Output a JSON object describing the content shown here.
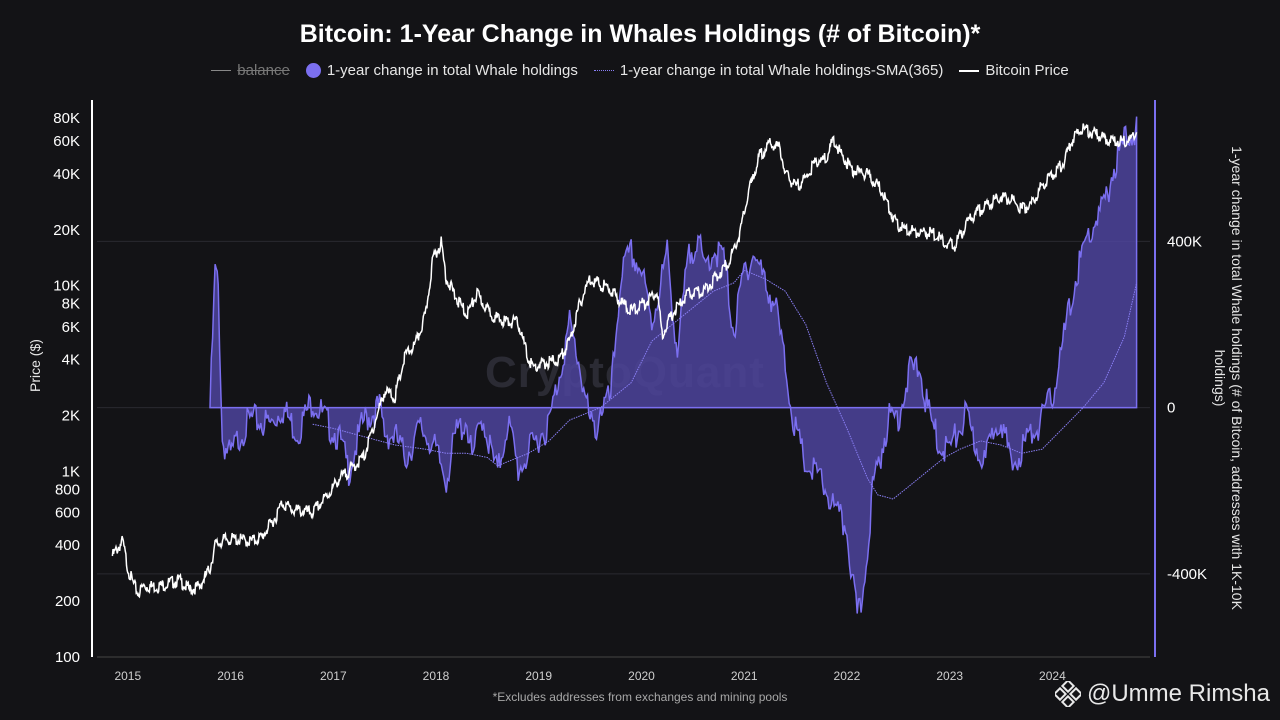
{
  "chart_data": {
    "type": "area",
    "title": "Bitcoin: 1-Year Change in Whales Holdings (# of Bitcoin)*",
    "legend": {
      "balance": "balance",
      "change": "1-year change in total Whale holdings",
      "sma": "1-year change in total Whale holdings-SMA(365)",
      "price": "Bitcoin Price"
    },
    "left_axis": {
      "label": "Price ($)",
      "scale": "log",
      "range": [
        100,
        100000
      ],
      "ticks": [
        {
          "v": 100,
          "label": "100"
        },
        {
          "v": 200,
          "label": "200"
        },
        {
          "v": 400,
          "label": "400"
        },
        {
          "v": 600,
          "label": "600"
        },
        {
          "v": 800,
          "label": "800"
        },
        {
          "v": 1000,
          "label": "1K"
        },
        {
          "v": 2000,
          "label": "2K"
        },
        {
          "v": 4000,
          "label": "4K"
        },
        {
          "v": 6000,
          "label": "6K"
        },
        {
          "v": 8000,
          "label": "8K"
        },
        {
          "v": 10000,
          "label": "10K"
        },
        {
          "v": 20000,
          "label": "20K"
        },
        {
          "v": 40000,
          "label": "40K"
        },
        {
          "v": 60000,
          "label": "60K"
        },
        {
          "v": 80000,
          "label": "80K"
        }
      ]
    },
    "right_axis": {
      "label": "1-year change in total Whale holdings (# of Bitcoin, addresses with 1K-10K holdings)",
      "range": [
        -600000,
        740000
      ],
      "ticks": [
        {
          "v": 400000,
          "label": "400K"
        },
        {
          "v": 0,
          "label": "0"
        },
        {
          "v": -400000,
          "label": "-400K"
        }
      ]
    },
    "x_axis": {
      "range": [
        2014.7,
        2024.95
      ],
      "ticks": [
        {
          "v": 2015,
          "label": "2015"
        },
        {
          "v": 2016,
          "label": "2016"
        },
        {
          "v": 2017,
          "label": "2017"
        },
        {
          "v": 2018,
          "label": "2018"
        },
        {
          "v": 2019,
          "label": "2019"
        },
        {
          "v": 2020,
          "label": "2020"
        },
        {
          "v": 2021,
          "label": "2021"
        },
        {
          "v": 2022,
          "label": "2022"
        },
        {
          "v": 2023,
          "label": "2023"
        },
        {
          "v": 2024,
          "label": "2024"
        }
      ]
    },
    "series": [
      {
        "name": "Bitcoin Price",
        "color": "#ffffff",
        "x": [
          2014.85,
          2014.95,
          2015.0,
          2015.05,
          2015.1,
          2015.15,
          2015.3,
          2015.5,
          2015.6,
          2015.7,
          2015.8,
          2015.85,
          2015.95,
          2016.05,
          2016.2,
          2016.3,
          2016.45,
          2016.5,
          2016.6,
          2016.8,
          2016.95,
          2017.05,
          2017.15,
          2017.3,
          2017.45,
          2017.5,
          2017.6,
          2017.7,
          2017.8,
          2017.9,
          2017.97,
          2018.05,
          2018.1,
          2018.2,
          2018.3,
          2018.4,
          2018.5,
          2018.6,
          2018.7,
          2018.8,
          2018.9,
          2018.95,
          2019.05,
          2019.2,
          2019.3,
          2019.4,
          2019.5,
          2019.55,
          2019.7,
          2019.8,
          2019.9,
          2020.05,
          2020.15,
          2020.2,
          2020.3,
          2020.45,
          2020.6,
          2020.75,
          2020.85,
          2020.95,
          2021.05,
          2021.15,
          2021.25,
          2021.35,
          2021.4,
          2021.5,
          2021.6,
          2021.7,
          2021.8,
          2021.87,
          2021.95,
          2022.05,
          2022.2,
          2022.35,
          2022.45,
          2022.55,
          2022.7,
          2022.85,
          2022.95,
          2023.05,
          2023.2,
          2023.35,
          2023.5,
          2023.6,
          2023.7,
          2023.8,
          2023.9,
          2024.0,
          2024.1,
          2024.2,
          2024.3,
          2024.45,
          2024.6,
          2024.75,
          2024.82
        ],
        "values": [
          350,
          420,
          300,
          250,
          220,
          240,
          240,
          260,
          230,
          240,
          300,
          400,
          430,
          430,
          420,
          440,
          580,
          680,
          620,
          600,
          750,
          900,
          1000,
          1200,
          2200,
          2700,
          2500,
          4200,
          4800,
          7000,
          14000,
          17000,
          11000,
          8500,
          7000,
          9000,
          7400,
          6600,
          6400,
          6300,
          4000,
          3600,
          3800,
          4000,
          5000,
          8000,
          11000,
          10500,
          9500,
          8200,
          7300,
          8200,
          9500,
          5500,
          7000,
          9000,
          9300,
          11500,
          13500,
          18500,
          33000,
          50000,
          58000,
          55000,
          40000,
          34000,
          38000,
          47000,
          48000,
          62000,
          50000,
          42000,
          40000,
          32000,
          23000,
          20000,
          19500,
          19000,
          17000,
          16500,
          23000,
          27000,
          30000,
          29000,
          26000,
          27500,
          35000,
          40000,
          45000,
          62000,
          70000,
          64000,
          60000,
          61000,
          67000
        ]
      },
      {
        "name": "1-year change in total Whale holdings",
        "color": "#7b6ff0",
        "x": [
          2015.8,
          2015.85,
          2015.88,
          2015.92,
          2016.0,
          2016.1,
          2016.2,
          2016.4,
          2016.5,
          2016.65,
          2016.8,
          2016.95,
          2017.05,
          2017.15,
          2017.3,
          2017.45,
          2017.5,
          2017.6,
          2017.7,
          2017.85,
          2017.95,
          2018.1,
          2018.2,
          2018.3,
          2018.35,
          2018.45,
          2018.55,
          2018.6,
          2018.7,
          2018.8,
          2018.9,
          2019.0,
          2019.1,
          2019.2,
          2019.3,
          2019.4,
          2019.5,
          2019.55,
          2019.6,
          2019.7,
          2019.8,
          2019.9,
          2020.0,
          2020.1,
          2020.15,
          2020.25,
          2020.35,
          2020.45,
          2020.55,
          2020.6,
          2020.7,
          2020.8,
          2020.9,
          2021.0,
          2021.1,
          2021.2,
          2021.3,
          2021.4,
          2021.5,
          2021.6,
          2021.7,
          2021.8,
          2021.9,
          2022.0,
          2022.05,
          2022.1,
          2022.15,
          2022.25,
          2022.4,
          2022.5,
          2022.6,
          2022.7,
          2022.8,
          2022.9,
          2023.0,
          2023.1,
          2023.15,
          2023.25,
          2023.35,
          2023.45,
          2023.5,
          2023.6,
          2023.7,
          2023.8,
          2023.9,
          2024.0,
          2024.1,
          2024.2,
          2024.3,
          2024.4,
          2024.5,
          2024.6,
          2024.7,
          2024.8,
          2024.82
        ],
        "values": [
          0,
          330000,
          290000,
          -80000,
          -120000,
          -60000,
          -30000,
          -40000,
          0,
          -60000,
          20000,
          -40000,
          -70000,
          -150000,
          -30000,
          0,
          -60000,
          -70000,
          -120000,
          -50000,
          -80000,
          -170000,
          -60000,
          -30000,
          -130000,
          -20000,
          -120000,
          -160000,
          -30000,
          -150000,
          -110000,
          -70000,
          -40000,
          80000,
          200000,
          100000,
          -40000,
          -60000,
          0,
          20000,
          320000,
          370000,
          330000,
          200000,
          260000,
          370000,
          130000,
          350000,
          420000,
          330000,
          380000,
          360000,
          180000,
          330000,
          370000,
          300000,
          250000,
          100000,
          -60000,
          -140000,
          -160000,
          -200000,
          -260000,
          -290000,
          -410000,
          -510000,
          -460000,
          -200000,
          -30000,
          -20000,
          80000,
          100000,
          -20000,
          -90000,
          -100000,
          -50000,
          -20000,
          -90000,
          -130000,
          -30000,
          -20000,
          -150000,
          -100000,
          -60000,
          -30000,
          30000,
          150000,
          280000,
          380000,
          440000,
          480000,
          580000,
          640000,
          670000,
          700000
        ]
      },
      {
        "name": "1-year change in total Whale holdings-SMA(365)",
        "color": "#8a7ff5",
        "x": [
          2016.8,
          2017.0,
          2017.3,
          2017.6,
          2017.9,
          2018.1,
          2018.3,
          2018.5,
          2018.6,
          2018.7,
          2018.9,
          2019.1,
          2019.3,
          2019.6,
          2019.9,
          2020.1,
          2020.4,
          2020.7,
          2020.9,
          2021.0,
          2021.2,
          2021.4,
          2021.6,
          2021.8,
          2022.0,
          2022.2,
          2022.3,
          2022.45,
          2022.6,
          2022.8,
          2022.95,
          2023.1,
          2023.3,
          2023.5,
          2023.7,
          2023.9,
          2024.1,
          2024.3,
          2024.5,
          2024.7,
          2024.82
        ],
        "values": [
          -40000,
          -50000,
          -70000,
          -90000,
          -100000,
          -110000,
          -110000,
          -120000,
          -140000,
          -130000,
          -110000,
          -80000,
          -30000,
          0,
          60000,
          160000,
          220000,
          280000,
          300000,
          330000,
          310000,
          280000,
          200000,
          60000,
          -50000,
          -170000,
          -210000,
          -220000,
          -190000,
          -150000,
          -120000,
          -100000,
          -80000,
          -90000,
          -110000,
          -100000,
          -50000,
          0,
          60000,
          170000,
          300000
        ]
      }
    ],
    "footnote": "*Excludes addresses from exchanges and mining pools",
    "watermark": "CryptoQuant",
    "credit": "@Umme Rimsha"
  }
}
